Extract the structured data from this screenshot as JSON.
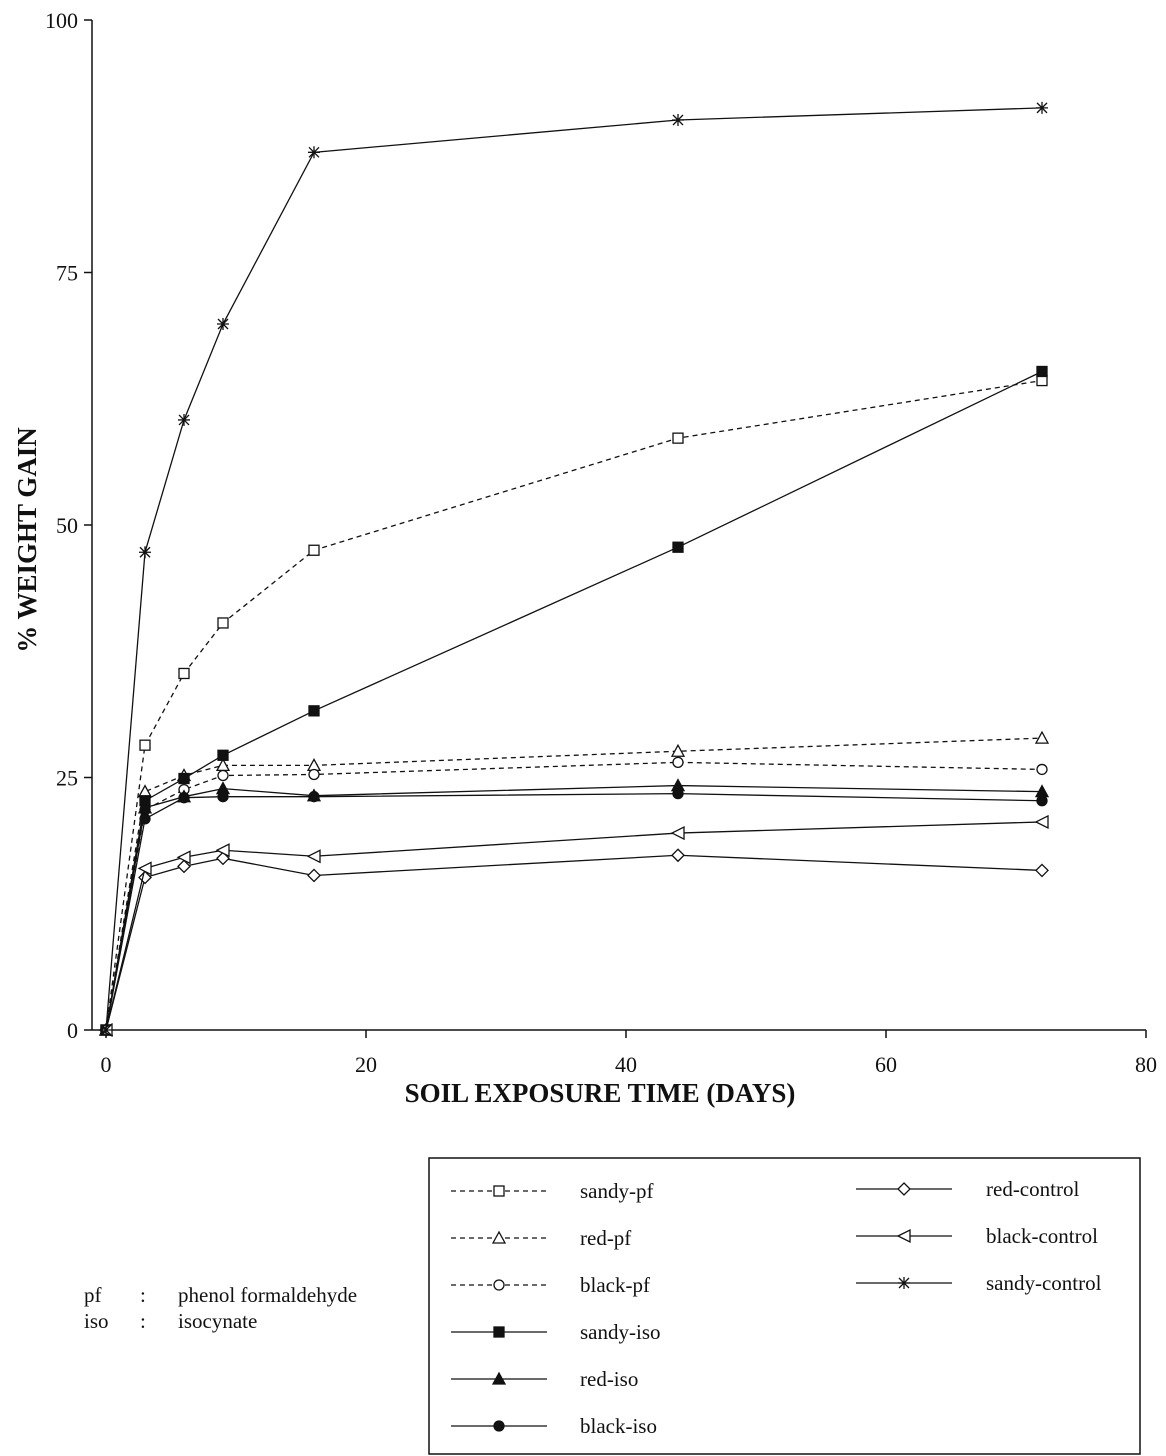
{
  "chart_data": {
    "type": "line",
    "title": "",
    "xlabel": "SOIL EXPOSURE TIME (DAYS)",
    "ylabel": "% WEIGHT GAIN",
    "xlim": [
      0,
      80
    ],
    "ylim": [
      0,
      100
    ],
    "xticks": [
      0,
      20,
      40,
      60,
      80
    ],
    "yticks": [
      0,
      25,
      50,
      75,
      100
    ],
    "grid": false,
    "legend_position": "bottom-right",
    "series": [
      {
        "name": "sandy-pf",
        "style": "dashed",
        "marker": "open-square",
        "x": [
          0,
          3,
          6,
          9,
          16,
          44,
          72
        ],
        "y": [
          0,
          28.2,
          35.3,
          40.3,
          47.5,
          58.6,
          64.3
        ]
      },
      {
        "name": "red-pf",
        "style": "dashed",
        "marker": "open-triangle",
        "x": [
          0,
          3,
          6,
          9,
          16,
          44,
          72
        ],
        "y": [
          0,
          23.6,
          25.2,
          26.2,
          26.2,
          27.6,
          28.9
        ]
      },
      {
        "name": "black-pf",
        "style": "dashed",
        "marker": "open-circle",
        "x": [
          0,
          3,
          6,
          9,
          16,
          44,
          72
        ],
        "y": [
          0,
          21.8,
          23.8,
          25.2,
          25.3,
          26.5,
          25.8
        ]
      },
      {
        "name": "sandy-iso",
        "style": "solid",
        "marker": "filled-square",
        "x": [
          0,
          3,
          6,
          9,
          16,
          44,
          72
        ],
        "y": [
          0,
          22.7,
          24.9,
          27.2,
          31.6,
          47.8,
          65.2
        ]
      },
      {
        "name": "red-iso",
        "style": "solid",
        "marker": "filled-triangle",
        "x": [
          0,
          3,
          6,
          9,
          16,
          44,
          72
        ],
        "y": [
          0,
          22.0,
          23.1,
          23.9,
          23.2,
          24.2,
          23.6
        ]
      },
      {
        "name": "black-iso",
        "style": "solid",
        "marker": "filled-circle",
        "x": [
          0,
          3,
          6,
          9,
          16,
          44,
          72
        ],
        "y": [
          0,
          20.9,
          23.0,
          23.1,
          23.1,
          23.4,
          22.7
        ]
      },
      {
        "name": "red-control",
        "style": "solid",
        "marker": "open-diamond",
        "x": [
          0,
          3,
          6,
          9,
          16,
          44,
          72
        ],
        "y": [
          0,
          15.1,
          16.2,
          17.0,
          15.3,
          17.3,
          15.8
        ]
      },
      {
        "name": "black-control",
        "style": "solid",
        "marker": "open-left-triangle",
        "x": [
          0,
          3,
          6,
          9,
          16,
          44,
          72
        ],
        "y": [
          0,
          16.0,
          17.1,
          17.8,
          17.2,
          19.5,
          20.6
        ]
      },
      {
        "name": "sandy-control",
        "style": "solid",
        "marker": "asterisk",
        "x": [
          0,
          3,
          6,
          9,
          16,
          44,
          72
        ],
        "y": [
          0,
          47.3,
          60.4,
          69.9,
          86.9,
          90.1,
          91.3
        ]
      }
    ]
  },
  "legend": {
    "left_column": [
      "sandy-pf",
      "red-pf",
      "black-pf",
      "sandy-iso",
      "red-iso",
      "black-iso"
    ],
    "right_column": [
      "red-control",
      "black-control",
      "sandy-control"
    ]
  },
  "abbreviations": [
    {
      "abbr": "pf",
      "sep": ":",
      "meaning": "phenol formaldehyde"
    },
    {
      "abbr": "iso",
      "sep": ":",
      "meaning": "isocynate"
    }
  ]
}
